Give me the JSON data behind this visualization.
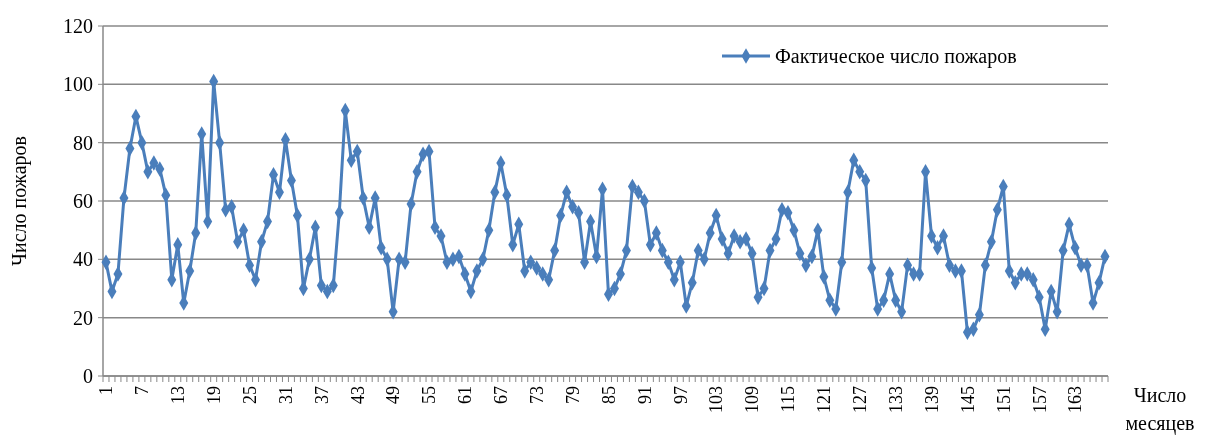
{
  "chart_data": {
    "type": "line",
    "xlabel": "Число месяцев",
    "ylabel": "Число пожаров",
    "categories": [
      "1",
      null,
      null,
      null,
      null,
      null,
      "7",
      null,
      null,
      null,
      null,
      null,
      "13",
      null,
      null,
      null,
      null,
      null,
      "19",
      null,
      null,
      null,
      null,
      null,
      "25",
      null,
      null,
      null,
      null,
      null,
      "31",
      null,
      null,
      null,
      null,
      null,
      "37",
      null,
      null,
      null,
      null,
      null,
      "43",
      null,
      null,
      null,
      null,
      null,
      "49",
      null,
      null,
      null,
      null,
      null,
      "55",
      null,
      null,
      null,
      null,
      null,
      "61",
      null,
      null,
      null,
      null,
      null,
      "67",
      null,
      null,
      null,
      null,
      null,
      "73",
      null,
      null,
      null,
      null,
      null,
      "79",
      null,
      null,
      null,
      null,
      null,
      "85",
      null,
      null,
      null,
      null,
      null,
      "91",
      null,
      null,
      null,
      null,
      null,
      "97",
      null,
      null,
      null,
      null,
      null,
      "103",
      null,
      null,
      null,
      null,
      null,
      "109",
      null,
      null,
      null,
      null,
      null,
      "115",
      null,
      null,
      null,
      null,
      null,
      "121",
      null,
      null,
      null,
      null,
      null,
      "127",
      null,
      null,
      null,
      null,
      null,
      "133",
      null,
      null,
      null,
      null,
      null,
      "139",
      null,
      null,
      null,
      null,
      null,
      "145",
      null,
      null,
      null,
      null,
      null,
      "151",
      null,
      null,
      null,
      null,
      null,
      "157",
      null,
      null,
      null,
      null,
      null,
      "163",
      null,
      null,
      null,
      null,
      null
    ],
    "series": [
      {
        "name": "Фактическое число пожаров",
        "color": "#4a7ebb",
        "values": [
          39,
          29,
          35,
          61,
          78,
          89,
          80,
          70,
          73,
          71,
          62,
          33,
          45,
          25,
          36,
          49,
          83,
          53,
          101,
          80,
          57,
          58,
          46,
          50,
          38,
          33,
          46,
          53,
          69,
          63,
          81,
          67,
          55,
          30,
          40,
          51,
          31,
          29,
          31,
          56,
          91,
          74,
          77,
          61,
          51,
          61,
          44,
          40,
          22,
          40,
          39,
          59,
          70,
          76,
          77,
          51,
          48,
          39,
          40,
          41,
          35,
          29,
          36,
          40,
          50,
          63,
          73,
          62,
          45,
          52,
          36,
          39,
          37,
          35,
          33,
          43,
          55,
          63,
          58,
          56,
          39,
          53,
          41,
          64,
          28,
          30,
          35,
          43,
          65,
          63,
          60,
          45,
          49,
          43,
          39,
          33,
          39,
          24,
          32,
          43,
          40,
          49,
          55,
          47,
          42,
          48,
          46,
          47,
          42,
          27,
          30,
          43,
          47,
          57,
          56,
          50,
          42,
          38,
          41,
          50,
          34,
          26,
          23,
          39,
          63,
          74,
          70,
          67,
          37,
          23,
          26,
          35,
          26,
          22,
          38,
          35,
          35,
          70,
          48,
          44,
          48,
          38,
          36,
          36,
          15,
          16,
          21,
          38,
          46,
          57,
          65,
          36,
          32,
          35,
          35,
          33,
          27,
          16,
          29,
          22,
          43,
          52,
          44,
          38,
          38,
          25,
          32,
          41
        ]
      }
    ],
    "ylim": [
      0,
      120
    ],
    "yticks": [
      0,
      20,
      40,
      60,
      80,
      100,
      120
    ],
    "grid": "y",
    "legend": "top right",
    "marker": "diamond",
    "line_style": "solid"
  }
}
